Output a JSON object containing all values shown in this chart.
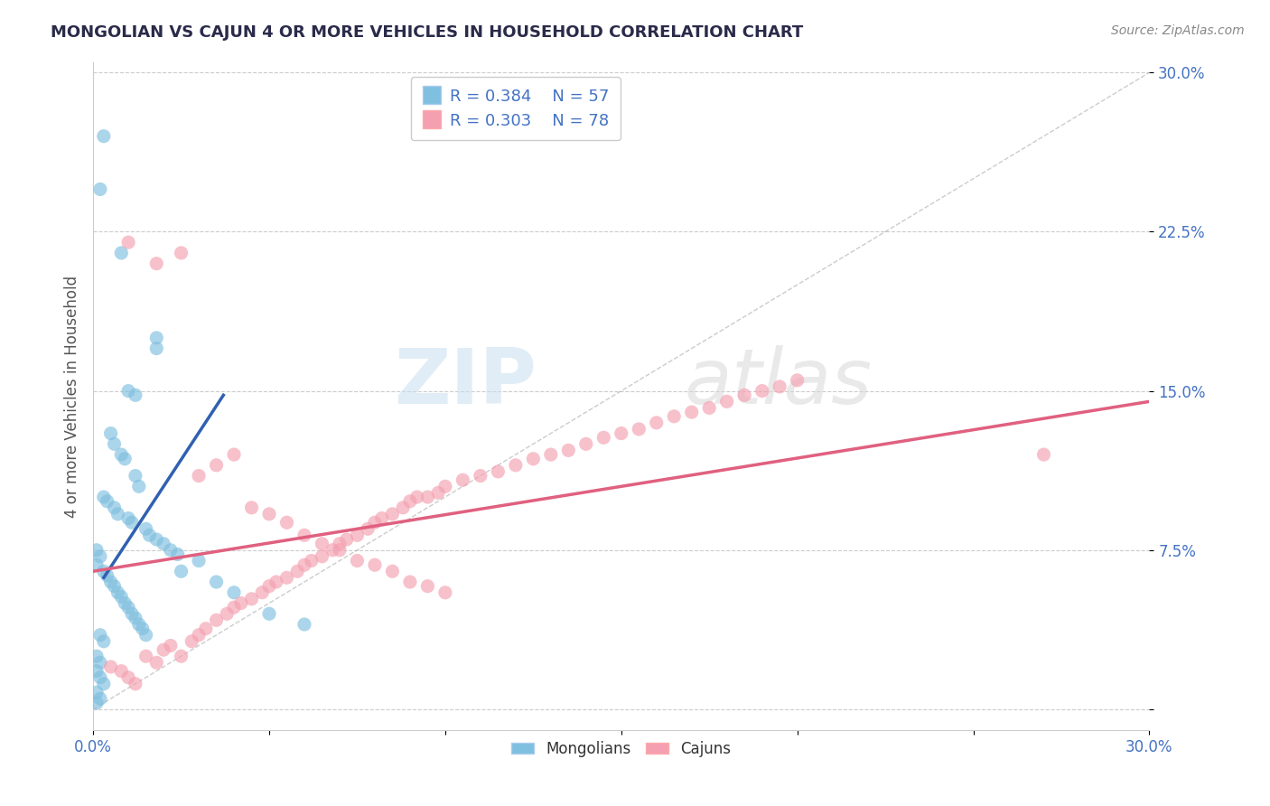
{
  "title": "MONGOLIAN VS CAJUN 4 OR MORE VEHICLES IN HOUSEHOLD CORRELATION CHART",
  "source": "Source: ZipAtlas.com",
  "ylabel": "4 or more Vehicles in Household",
  "xlim": [
    0.0,
    0.3
  ],
  "ylim": [
    -0.01,
    0.305
  ],
  "xticks": [
    0.0,
    0.05,
    0.1,
    0.15,
    0.2,
    0.25,
    0.3
  ],
  "xticklabels": [
    "0.0%",
    "",
    "",
    "",
    "",
    "",
    "30.0%"
  ],
  "yticks": [
    0.0,
    0.075,
    0.15,
    0.225,
    0.3
  ],
  "yticklabels": [
    "",
    "7.5%",
    "15.0%",
    "22.5%",
    "30.0%"
  ],
  "legend_r": [
    "R = 0.384",
    "R = 0.303"
  ],
  "legend_n": [
    "N = 57",
    "N = 78"
  ],
  "mongolian_color": "#7fbfdf",
  "cajun_color": "#f4a0b0",
  "mongolian_line_color": "#3060b0",
  "cajun_line_color": "#e06080",
  "mongolian_scatter": [
    [
      0.003,
      0.27
    ],
    [
      0.002,
      0.245
    ],
    [
      0.008,
      0.215
    ],
    [
      0.018,
      0.175
    ],
    [
      0.018,
      0.17
    ],
    [
      0.01,
      0.15
    ],
    [
      0.012,
      0.148
    ],
    [
      0.005,
      0.13
    ],
    [
      0.006,
      0.125
    ],
    [
      0.008,
      0.12
    ],
    [
      0.009,
      0.118
    ],
    [
      0.012,
      0.11
    ],
    [
      0.013,
      0.105
    ],
    [
      0.003,
      0.1
    ],
    [
      0.004,
      0.098
    ],
    [
      0.006,
      0.095
    ],
    [
      0.007,
      0.092
    ],
    [
      0.01,
      0.09
    ],
    [
      0.011,
      0.088
    ],
    [
      0.015,
      0.085
    ],
    [
      0.016,
      0.082
    ],
    [
      0.018,
      0.08
    ],
    [
      0.02,
      0.078
    ],
    [
      0.022,
      0.075
    ],
    [
      0.024,
      0.073
    ],
    [
      0.001,
      0.075
    ],
    [
      0.002,
      0.072
    ],
    [
      0.001,
      0.068
    ],
    [
      0.003,
      0.065
    ],
    [
      0.004,
      0.063
    ],
    [
      0.005,
      0.06
    ],
    [
      0.006,
      0.058
    ],
    [
      0.007,
      0.055
    ],
    [
      0.008,
      0.053
    ],
    [
      0.009,
      0.05
    ],
    [
      0.01,
      0.048
    ],
    [
      0.011,
      0.045
    ],
    [
      0.012,
      0.043
    ],
    [
      0.013,
      0.04
    ],
    [
      0.014,
      0.038
    ],
    [
      0.015,
      0.035
    ],
    [
      0.002,
      0.035
    ],
    [
      0.003,
      0.032
    ],
    [
      0.001,
      0.025
    ],
    [
      0.002,
      0.022
    ],
    [
      0.001,
      0.018
    ],
    [
      0.002,
      0.015
    ],
    [
      0.003,
      0.012
    ],
    [
      0.001,
      0.008
    ],
    [
      0.002,
      0.005
    ],
    [
      0.001,
      0.003
    ],
    [
      0.025,
      0.065
    ],
    [
      0.03,
      0.07
    ],
    [
      0.035,
      0.06
    ],
    [
      0.04,
      0.055
    ],
    [
      0.05,
      0.045
    ],
    [
      0.06,
      0.04
    ]
  ],
  "cajun_scatter": [
    [
      0.27,
      0.12
    ],
    [
      0.005,
      0.02
    ],
    [
      0.008,
      0.018
    ],
    [
      0.01,
      0.015
    ],
    [
      0.012,
      0.012
    ],
    [
      0.015,
      0.025
    ],
    [
      0.018,
      0.022
    ],
    [
      0.02,
      0.028
    ],
    [
      0.022,
      0.03
    ],
    [
      0.025,
      0.025
    ],
    [
      0.028,
      0.032
    ],
    [
      0.03,
      0.035
    ],
    [
      0.032,
      0.038
    ],
    [
      0.035,
      0.042
    ],
    [
      0.038,
      0.045
    ],
    [
      0.04,
      0.048
    ],
    [
      0.042,
      0.05
    ],
    [
      0.045,
      0.052
    ],
    [
      0.048,
      0.055
    ],
    [
      0.05,
      0.058
    ],
    [
      0.052,
      0.06
    ],
    [
      0.055,
      0.062
    ],
    [
      0.058,
      0.065
    ],
    [
      0.06,
      0.068
    ],
    [
      0.062,
      0.07
    ],
    [
      0.065,
      0.072
    ],
    [
      0.068,
      0.075
    ],
    [
      0.07,
      0.078
    ],
    [
      0.072,
      0.08
    ],
    [
      0.075,
      0.082
    ],
    [
      0.078,
      0.085
    ],
    [
      0.08,
      0.088
    ],
    [
      0.082,
      0.09
    ],
    [
      0.085,
      0.092
    ],
    [
      0.088,
      0.095
    ],
    [
      0.09,
      0.098
    ],
    [
      0.092,
      0.1
    ],
    [
      0.095,
      0.1
    ],
    [
      0.098,
      0.102
    ],
    [
      0.1,
      0.105
    ],
    [
      0.105,
      0.108
    ],
    [
      0.11,
      0.11
    ],
    [
      0.115,
      0.112
    ],
    [
      0.12,
      0.115
    ],
    [
      0.125,
      0.118
    ],
    [
      0.13,
      0.12
    ],
    [
      0.135,
      0.122
    ],
    [
      0.14,
      0.125
    ],
    [
      0.145,
      0.128
    ],
    [
      0.15,
      0.13
    ],
    [
      0.155,
      0.132
    ],
    [
      0.16,
      0.135
    ],
    [
      0.165,
      0.138
    ],
    [
      0.17,
      0.14
    ],
    [
      0.175,
      0.142
    ],
    [
      0.18,
      0.145
    ],
    [
      0.185,
      0.148
    ],
    [
      0.19,
      0.15
    ],
    [
      0.195,
      0.152
    ],
    [
      0.2,
      0.155
    ],
    [
      0.01,
      0.22
    ],
    [
      0.018,
      0.21
    ],
    [
      0.025,
      0.215
    ],
    [
      0.03,
      0.11
    ],
    [
      0.035,
      0.115
    ],
    [
      0.04,
      0.12
    ],
    [
      0.045,
      0.095
    ],
    [
      0.05,
      0.092
    ],
    [
      0.055,
      0.088
    ],
    [
      0.06,
      0.082
    ],
    [
      0.065,
      0.078
    ],
    [
      0.07,
      0.075
    ],
    [
      0.075,
      0.07
    ],
    [
      0.08,
      0.068
    ],
    [
      0.085,
      0.065
    ],
    [
      0.09,
      0.06
    ],
    [
      0.095,
      0.058
    ],
    [
      0.1,
      0.055
    ]
  ]
}
